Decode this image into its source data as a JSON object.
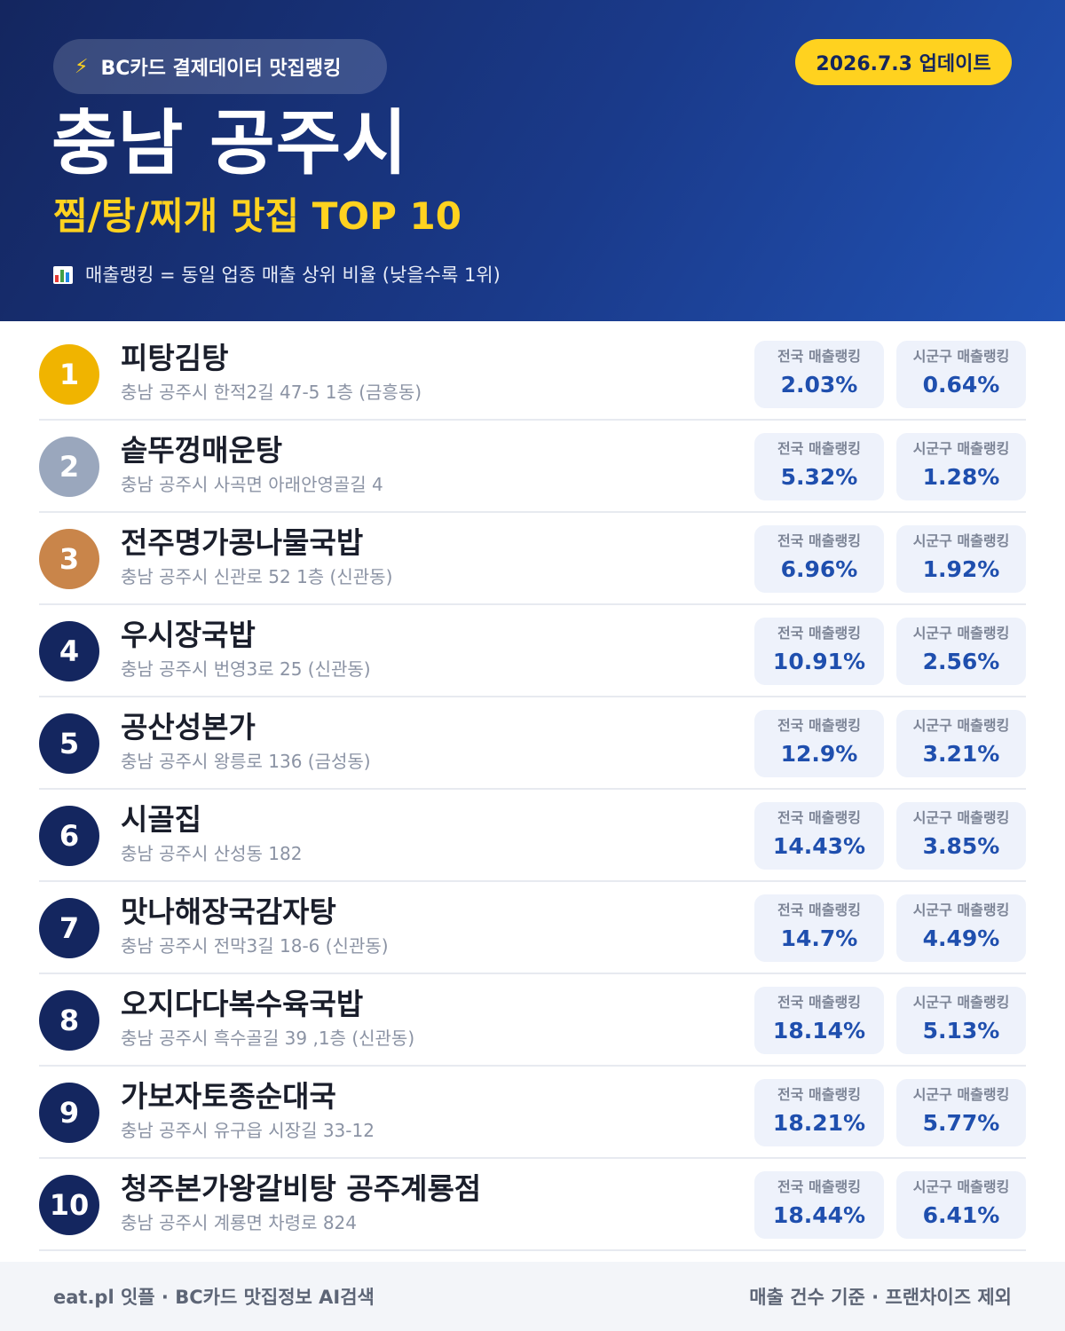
{
  "header": {
    "source_badge_icon": "lightning-icon",
    "source_badge": "BC카드 결제데이터 맛집랭킹",
    "update_badge": "2026.7.3 업데이트",
    "city": "충남 공주시",
    "subtitle": "찜/탕/찌개 맛집 TOP 10",
    "legend_icon": "bar-chart-icon",
    "legend": "매출랭킹 = 동일 업종 매출 상위 비율 (낮을수록 1위)"
  },
  "labels": {
    "national": "전국 매출랭킹",
    "local": "시군구 매출랭킹"
  },
  "colors": {
    "gold": "#f0b400",
    "silver": "#9aa7bd",
    "bronze": "#c9854a",
    "navy": "#14265f",
    "accent_yellow": "#ffd21f",
    "value_blue": "#1f4fae"
  },
  "restaurants": [
    {
      "rank": "1",
      "name": "피탕김탕",
      "address": "충남 공주시 한적2길 47-5 1층 (금흥동)",
      "national": "2.03%",
      "local": "0.64%"
    },
    {
      "rank": "2",
      "name": "솥뚜껑매운탕",
      "address": "충남 공주시 사곡면 아래안영골길 4",
      "national": "5.32%",
      "local": "1.28%"
    },
    {
      "rank": "3",
      "name": "전주명가콩나물국밥",
      "address": "충남 공주시 신관로 52 1층 (신관동)",
      "national": "6.96%",
      "local": "1.92%"
    },
    {
      "rank": "4",
      "name": "우시장국밥",
      "address": "충남 공주시 번영3로 25 (신관동)",
      "national": "10.91%",
      "local": "2.56%"
    },
    {
      "rank": "5",
      "name": "공산성본가",
      "address": "충남 공주시 왕릉로 136 (금성동)",
      "national": "12.9%",
      "local": "3.21%"
    },
    {
      "rank": "6",
      "name": "시골집",
      "address": "충남 공주시 산성동 182",
      "national": "14.43%",
      "local": "3.85%"
    },
    {
      "rank": "7",
      "name": "맛나해장국감자탕",
      "address": "충남 공주시 전막3길 18-6 (신관동)",
      "national": "14.7%",
      "local": "4.49%"
    },
    {
      "rank": "8",
      "name": "오지다다복수육국밥",
      "address": "충남 공주시 흑수골길 39 ,1층 (신관동)",
      "national": "18.14%",
      "local": "5.13%"
    },
    {
      "rank": "9",
      "name": "가보자토종순대국",
      "address": "충남 공주시 유구읍 시장길 33-12",
      "national": "18.21%",
      "local": "5.77%"
    },
    {
      "rank": "10",
      "name": "청주본가왕갈비탕 공주계룡점",
      "address": "충남 공주시 계룡면 차령로 824",
      "national": "18.44%",
      "local": "6.41%"
    }
  ],
  "footer": {
    "left": "eat.pl 잇플 · BC카드 맛집정보 AI검색",
    "right": "매출 건수 기준 · 프랜차이즈 제외"
  }
}
